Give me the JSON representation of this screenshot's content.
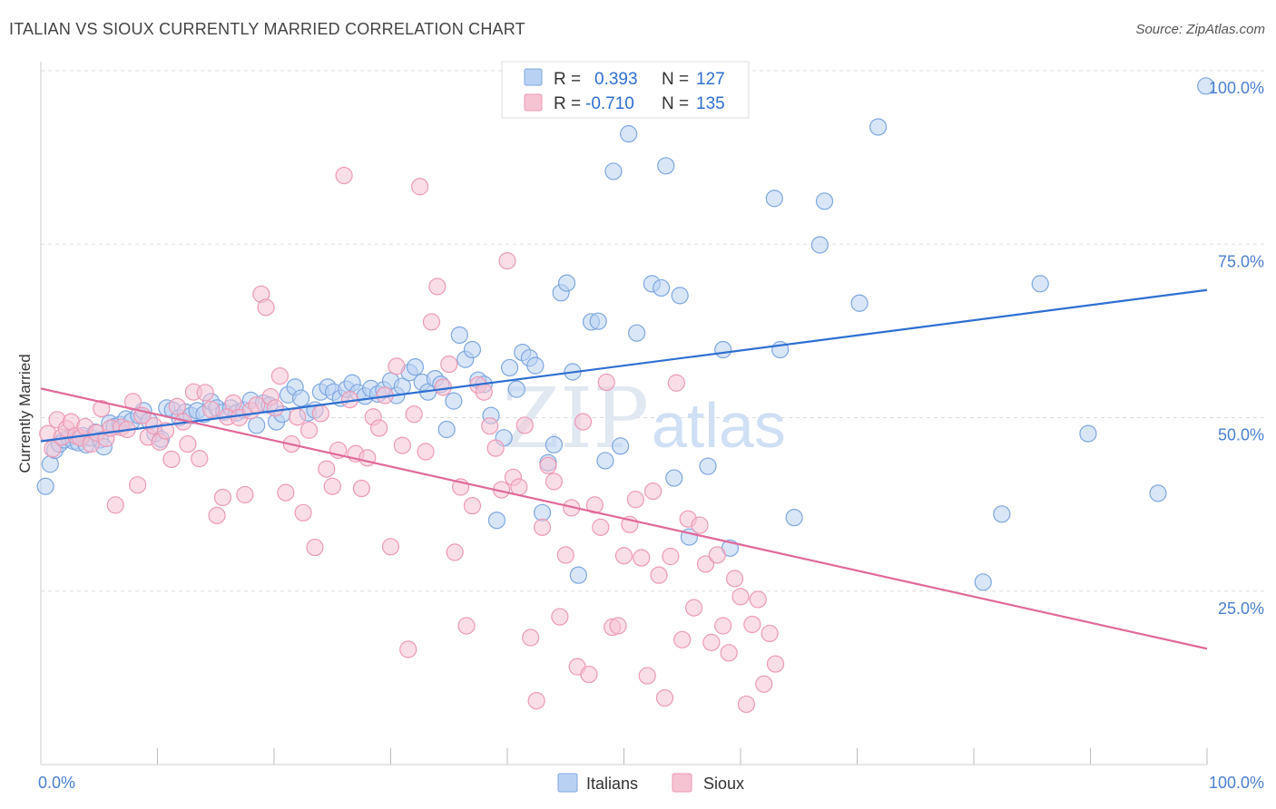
{
  "title": "ITALIAN VS SIOUX CURRENTLY MARRIED CORRELATION CHART",
  "source": "Source: ZipAtlas.com",
  "watermark": {
    "zip": "ZIP",
    "atlas": "atlas"
  },
  "colors": {
    "blue_fill": "#b9d2f3",
    "blue_stroke": "#7ea7df",
    "blue_line": "#2e6fd1",
    "pink_fill": "#f6c3d3",
    "pink_stroke": "#ec9ab5",
    "pink_line": "#e0699a",
    "grid": "#dddddd",
    "axis_text": "#4a7fd0"
  },
  "legend": {
    "rows": [
      {
        "r_label": "R =",
        "r_value": "0.393",
        "n_label": "N =",
        "n_value": "127"
      },
      {
        "r_label": "R =",
        "r_value": "-0.710",
        "n_label": "N =",
        "n_value": "135"
      }
    ]
  },
  "bottom_legend": [
    "Italians",
    "Sioux"
  ],
  "chart_data": {
    "type": "scatter",
    "title": "ITALIAN VS SIOUX CURRENTLY MARRIED CORRELATION CHART",
    "xlabel": "",
    "ylabel": "Currently Married",
    "xlim": [
      0,
      100
    ],
    "ylim": [
      0,
      100
    ],
    "x_tick_labels": [
      "0.0%",
      "100.0%"
    ],
    "y_ticks": [
      25,
      50,
      75,
      100
    ],
    "y_tick_labels": [
      "25.0%",
      "50.0%",
      "75.0%",
      "100.0%"
    ],
    "grid": true,
    "legend_position": "top-center",
    "series": [
      {
        "name": "Italians",
        "color": "#7ea7df",
        "R": 0.393,
        "N": 127,
        "trend": {
          "x": [
            0,
            100
          ],
          "y": [
            46.6,
            68.4
          ]
        },
        "points": [
          [
            0.4,
            40.1
          ],
          [
            0.8,
            43.3
          ],
          [
            1.2,
            45.3
          ],
          [
            1.6,
            46.2
          ],
          [
            2.0,
            46.8
          ],
          [
            2.4,
            47.1
          ],
          [
            2.8,
            46.6
          ],
          [
            3.2,
            46.4
          ],
          [
            3.6,
            47.4
          ],
          [
            3.9,
            46.1
          ],
          [
            4.3,
            47.1
          ],
          [
            4.7,
            47.9
          ],
          [
            5.1,
            46.8
          ],
          [
            5.4,
            45.8
          ],
          [
            5.9,
            49.2
          ],
          [
            6.3,
            48.7
          ],
          [
            6.8,
            49.0
          ],
          [
            7.3,
            49.8
          ],
          [
            7.8,
            49.5
          ],
          [
            8.4,
            50.3
          ],
          [
            8.8,
            51.0
          ],
          [
            9.3,
            49.5
          ],
          [
            9.8,
            47.7
          ],
          [
            10.3,
            46.9
          ],
          [
            10.8,
            51.4
          ],
          [
            11.3,
            51.1
          ],
          [
            11.9,
            50.0
          ],
          [
            12.4,
            50.8
          ],
          [
            12.9,
            50.3
          ],
          [
            13.4,
            51.0
          ],
          [
            14.0,
            50.5
          ],
          [
            14.6,
            52.3
          ],
          [
            15.1,
            51.4
          ],
          [
            15.7,
            50.8
          ],
          [
            16.3,
            51.4
          ],
          [
            16.8,
            50.7
          ],
          [
            17.4,
            51.1
          ],
          [
            18.0,
            52.5
          ],
          [
            18.5,
            48.9
          ],
          [
            19.1,
            52.1
          ],
          [
            19.6,
            51.8
          ],
          [
            20.2,
            49.4
          ],
          [
            20.7,
            50.5
          ],
          [
            21.2,
            53.3
          ],
          [
            21.8,
            54.4
          ],
          [
            22.3,
            52.8
          ],
          [
            22.9,
            50.7
          ],
          [
            23.5,
            51.1
          ],
          [
            24.0,
            53.7
          ],
          [
            24.6,
            54.4
          ],
          [
            25.1,
            53.7
          ],
          [
            25.7,
            52.8
          ],
          [
            26.2,
            54.1
          ],
          [
            26.7,
            55.0
          ],
          [
            27.2,
            53.6
          ],
          [
            27.8,
            53.1
          ],
          [
            28.3,
            54.2
          ],
          [
            28.9,
            53.4
          ],
          [
            29.4,
            54.0
          ],
          [
            30.0,
            55.3
          ],
          [
            30.5,
            53.2
          ],
          [
            31.0,
            54.5
          ],
          [
            31.6,
            56.5
          ],
          [
            32.1,
            57.3
          ],
          [
            32.7,
            55.1
          ],
          [
            33.2,
            53.7
          ],
          [
            33.8,
            55.6
          ],
          [
            34.3,
            54.8
          ],
          [
            34.8,
            48.3
          ],
          [
            35.4,
            52.4
          ],
          [
            35.9,
            61.9
          ],
          [
            36.4,
            58.4
          ],
          [
            37.0,
            59.8
          ],
          [
            37.5,
            55.4
          ],
          [
            38.0,
            54.8
          ],
          [
            38.6,
            50.3
          ],
          [
            39.1,
            35.2
          ],
          [
            39.7,
            47.1
          ],
          [
            40.2,
            57.2
          ],
          [
            40.8,
            54.1
          ],
          [
            41.3,
            59.4
          ],
          [
            41.9,
            58.6
          ],
          [
            42.4,
            57.5
          ],
          [
            43.0,
            36.3
          ],
          [
            43.5,
            43.5
          ],
          [
            44.0,
            46.1
          ],
          [
            44.6,
            68.0
          ],
          [
            45.1,
            69.4
          ],
          [
            45.6,
            56.6
          ],
          [
            46.1,
            27.3
          ],
          [
            47.2,
            63.8
          ],
          [
            47.8,
            63.9
          ],
          [
            48.4,
            43.8
          ],
          [
            49.1,
            85.5
          ],
          [
            49.7,
            45.9
          ],
          [
            50.4,
            90.9
          ],
          [
            51.1,
            62.2
          ],
          [
            52.4,
            69.3
          ],
          [
            53.2,
            68.7
          ],
          [
            53.6,
            86.3
          ],
          [
            54.3,
            41.3
          ],
          [
            54.8,
            67.6
          ],
          [
            55.6,
            32.8
          ],
          [
            57.2,
            43.0
          ],
          [
            58.5,
            59.8
          ],
          [
            59.1,
            31.2
          ],
          [
            62.9,
            81.6
          ],
          [
            63.4,
            59.8
          ],
          [
            64.6,
            35.6
          ],
          [
            66.8,
            74.9
          ],
          [
            67.2,
            81.2
          ],
          [
            70.2,
            66.5
          ],
          [
            71.8,
            91.9
          ],
          [
            80.8,
            26.3
          ],
          [
            82.4,
            36.1
          ],
          [
            85.7,
            69.3
          ],
          [
            89.8,
            47.7
          ],
          [
            99.9,
            97.8
          ],
          [
            95.8,
            39.1
          ]
        ]
      },
      {
        "name": "Sioux",
        "color": "#ec9ab5",
        "R": -0.71,
        "N": 135,
        "trend": {
          "x": [
            0,
            100
          ],
          "y": [
            54.2,
            16.7
          ]
        },
        "points": [
          [
            0.6,
            47.7
          ],
          [
            1.0,
            45.5
          ],
          [
            1.4,
            49.7
          ],
          [
            1.8,
            47.2
          ],
          [
            2.2,
            48.4
          ],
          [
            2.6,
            49.4
          ],
          [
            3.0,
            47.4
          ],
          [
            3.4,
            47.1
          ],
          [
            3.8,
            48.7
          ],
          [
            4.3,
            46.2
          ],
          [
            4.8,
            47.8
          ],
          [
            5.2,
            51.3
          ],
          [
            5.6,
            47.0
          ],
          [
            6.0,
            48.5
          ],
          [
            6.4,
            37.4
          ],
          [
            6.9,
            48.6
          ],
          [
            7.4,
            48.3
          ],
          [
            7.9,
            52.3
          ],
          [
            8.3,
            40.3
          ],
          [
            8.7,
            50.3
          ],
          [
            9.2,
            47.2
          ],
          [
            9.7,
            48.8
          ],
          [
            10.2,
            46.5
          ],
          [
            10.7,
            48.1
          ],
          [
            11.2,
            44.0
          ],
          [
            11.7,
            51.6
          ],
          [
            12.2,
            49.4
          ],
          [
            12.6,
            46.2
          ],
          [
            13.1,
            53.7
          ],
          [
            13.6,
            44.1
          ],
          [
            14.1,
            53.6
          ],
          [
            14.6,
            51.2
          ],
          [
            15.1,
            35.9
          ],
          [
            15.6,
            38.5
          ],
          [
            16.0,
            50.1
          ],
          [
            16.5,
            52.1
          ],
          [
            17.0,
            50.0
          ],
          [
            17.5,
            38.9
          ],
          [
            18.0,
            51.0
          ],
          [
            18.5,
            51.8
          ],
          [
            18.9,
            67.8
          ],
          [
            19.3,
            65.9
          ],
          [
            19.7,
            53.0
          ],
          [
            20.1,
            51.4
          ],
          [
            20.5,
            56.0
          ],
          [
            21.0,
            39.2
          ],
          [
            21.5,
            46.2
          ],
          [
            22.0,
            50.1
          ],
          [
            22.5,
            36.3
          ],
          [
            23.0,
            48.2
          ],
          [
            23.5,
            31.3
          ],
          [
            24.0,
            50.6
          ],
          [
            24.5,
            42.6
          ],
          [
            25.0,
            40.1
          ],
          [
            25.5,
            45.3
          ],
          [
            26.0,
            84.9
          ],
          [
            26.5,
            52.6
          ],
          [
            27.0,
            44.8
          ],
          [
            27.5,
            39.8
          ],
          [
            28.0,
            44.2
          ],
          [
            28.5,
            50.1
          ],
          [
            29.0,
            48.5
          ],
          [
            29.5,
            53.2
          ],
          [
            30.0,
            31.4
          ],
          [
            30.5,
            57.4
          ],
          [
            31.0,
            46.0
          ],
          [
            31.5,
            16.6
          ],
          [
            32.0,
            50.5
          ],
          [
            32.5,
            83.3
          ],
          [
            33.0,
            45.1
          ],
          [
            33.5,
            63.8
          ],
          [
            34.0,
            68.9
          ],
          [
            34.5,
            54.4
          ],
          [
            35.0,
            57.7
          ],
          [
            35.5,
            30.6
          ],
          [
            36.0,
            40.0
          ],
          [
            36.5,
            20.0
          ],
          [
            37.0,
            37.3
          ],
          [
            37.5,
            54.7
          ],
          [
            38.0,
            53.7
          ],
          [
            38.5,
            48.8
          ],
          [
            39.0,
            45.6
          ],
          [
            39.5,
            39.6
          ],
          [
            40.0,
            72.6
          ],
          [
            40.5,
            41.4
          ],
          [
            41.0,
            40.0
          ],
          [
            41.5,
            48.9
          ],
          [
            42.0,
            18.3
          ],
          [
            42.5,
            9.2
          ],
          [
            43.0,
            34.2
          ],
          [
            43.5,
            43.1
          ],
          [
            44.0,
            40.8
          ],
          [
            44.5,
            21.3
          ],
          [
            45.0,
            30.2
          ],
          [
            45.5,
            37.0
          ],
          [
            46.0,
            14.1
          ],
          [
            46.5,
            49.4
          ],
          [
            47.0,
            13.0
          ],
          [
            47.5,
            37.4
          ],
          [
            48.0,
            34.2
          ],
          [
            48.5,
            55.1
          ],
          [
            49.0,
            19.8
          ],
          [
            49.5,
            20.0
          ],
          [
            50.0,
            30.1
          ],
          [
            50.5,
            34.6
          ],
          [
            51.0,
            38.2
          ],
          [
            51.5,
            29.8
          ],
          [
            52.0,
            12.8
          ],
          [
            52.5,
            39.4
          ],
          [
            53.0,
            27.3
          ],
          [
            53.5,
            9.6
          ],
          [
            54.0,
            30.0
          ],
          [
            54.5,
            55.0
          ],
          [
            55.0,
            18.0
          ],
          [
            55.5,
            35.4
          ],
          [
            56.0,
            22.6
          ],
          [
            56.5,
            34.5
          ],
          [
            57.0,
            28.9
          ],
          [
            57.5,
            17.6
          ],
          [
            58.0,
            30.2
          ],
          [
            58.5,
            20.0
          ],
          [
            59.0,
            16.1
          ],
          [
            59.5,
            26.8
          ],
          [
            60.0,
            24.2
          ],
          [
            60.5,
            8.7
          ],
          [
            61.0,
            20.2
          ],
          [
            61.5,
            23.8
          ],
          [
            62.0,
            11.6
          ],
          [
            62.5,
            18.9
          ],
          [
            63.0,
            14.5
          ]
        ]
      }
    ]
  }
}
